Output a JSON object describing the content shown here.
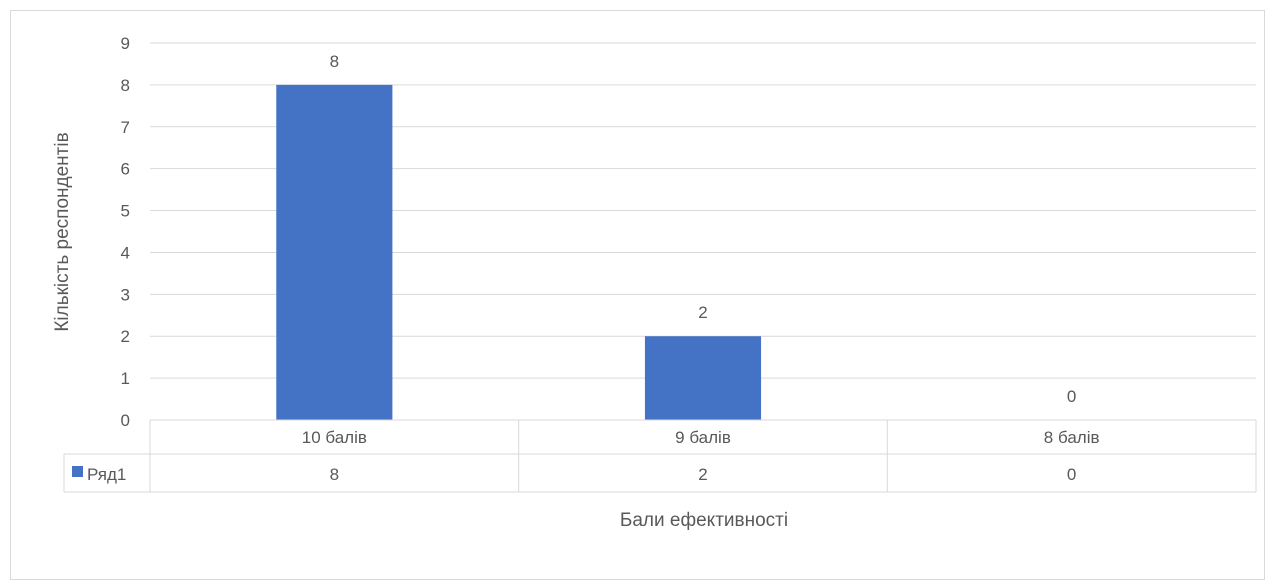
{
  "chart_data": {
    "type": "bar",
    "categories": [
      "10 балів",
      "9 балів",
      "8 балів"
    ],
    "series": [
      {
        "name": "Ряд1",
        "values": [
          8,
          2,
          0
        ],
        "color": "#4472C4"
      }
    ],
    "xlabel": "Бали ефективності",
    "ylabel": "Кількість респондентів",
    "ylim": [
      0,
      9
    ],
    "yticks": [
      0,
      1,
      2,
      3,
      4,
      5,
      6,
      7,
      8,
      9
    ],
    "grid": true,
    "data_labels": true,
    "data_table": true,
    "legend": "data-table"
  }
}
